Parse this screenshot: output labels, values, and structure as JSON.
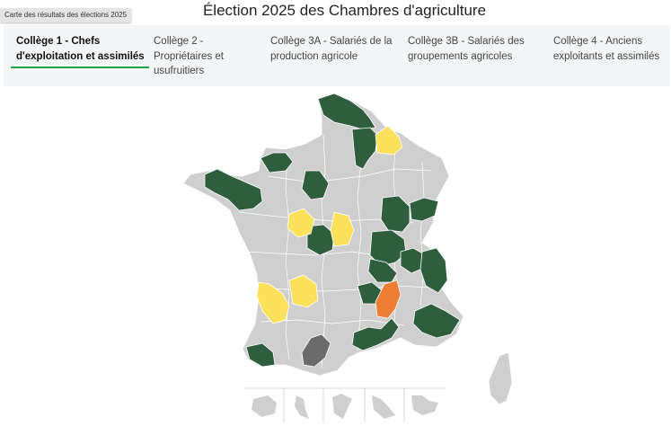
{
  "tooltip": "Carte des résultats des élections 2025",
  "title": "Élection 2025 des Chambres d'agriculture",
  "tabs": [
    {
      "line1": "Collège 1 - Chefs",
      "line2": "d'exploitation et assimilés",
      "line3": "",
      "active": true
    },
    {
      "line1": "Collège 2 -",
      "line2": "Propriétaires et",
      "line3": "usufruitiers",
      "active": false
    },
    {
      "line1": "Collège 3A - Salariés de la",
      "line2": "production agricole",
      "line3": "",
      "active": false
    },
    {
      "line1": "Collège 3B - Salariés des",
      "line2": "groupements agricoles",
      "line3": "",
      "active": false
    },
    {
      "line1": "Collège 4 - Anciens",
      "line2": "exploitants et assimilés",
      "line3": "",
      "active": false
    }
  ],
  "colors": {
    "green": "#2f5e3e",
    "yellow": "#fbe15c",
    "orange": "#f07d34",
    "dark_gray": "#6b6b6b",
    "no_data": "#cfcfcf",
    "active_tab": "#1fa14a"
  },
  "map": {
    "regions_shown": [
      "metropolitan-france",
      "corsica",
      "reunion",
      "mayotte",
      "guadeloupe",
      "martinique",
      "guyane"
    ]
  }
}
